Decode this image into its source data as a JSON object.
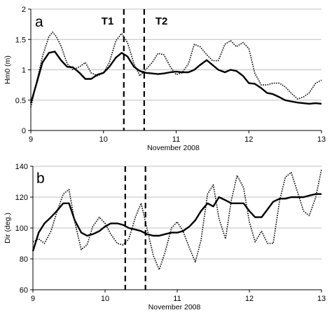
{
  "chart_data": [
    {
      "type": "line",
      "panel_label": "a",
      "title": "",
      "xlabel": "November 2008",
      "ylabel": "Hm0 (m)",
      "xlim": [
        9,
        13
      ],
      "ylim": [
        0,
        2
      ],
      "x_ticks": [
        9,
        10,
        11,
        12,
        13
      ],
      "x_tick_labels": [
        "9",
        "10",
        "11",
        "12",
        "13"
      ],
      "y_ticks": [
        0,
        0.5,
        1,
        1.5,
        2
      ],
      "y_tick_labels": [
        "0",
        "0.5",
        "1",
        "1.5",
        "2"
      ],
      "grid": "horizontal",
      "markers": [
        {
          "label": "T1",
          "x": 10.28
        },
        {
          "label": "T2",
          "x": 10.56
        }
      ],
      "series": [
        {
          "style": "solid",
          "x": [
            9.0,
            9.08,
            9.16,
            9.25,
            9.33,
            9.42,
            9.5,
            9.58,
            9.67,
            9.75,
            9.83,
            9.92,
            10.0,
            10.08,
            10.17,
            10.25,
            10.33,
            10.42,
            10.5,
            10.58,
            10.67,
            10.75,
            10.83,
            10.92,
            11.0,
            11.08,
            11.17,
            11.25,
            11.33,
            11.42,
            11.5,
            11.58,
            11.67,
            11.75,
            11.83,
            11.92,
            12.0,
            12.08,
            12.17,
            12.25,
            12.33,
            12.42,
            12.5,
            12.58,
            12.67,
            12.75,
            12.83,
            12.92,
            13.0
          ],
          "values": [
            0.45,
            0.78,
            1.12,
            1.28,
            1.3,
            1.15,
            1.05,
            1.04,
            0.95,
            0.85,
            0.85,
            0.92,
            0.95,
            1.05,
            1.2,
            1.28,
            1.22,
            1.05,
            0.98,
            0.95,
            0.94,
            0.93,
            0.94,
            0.96,
            0.97,
            0.96,
            0.96,
            1.0,
            1.08,
            1.16,
            1.08,
            1.0,
            0.96,
            1.0,
            0.98,
            0.9,
            0.78,
            0.77,
            0.7,
            0.62,
            0.6,
            0.55,
            0.5,
            0.48,
            0.46,
            0.45,
            0.44,
            0.45,
            0.44
          ]
        },
        {
          "style": "dotted",
          "x": [
            9.0,
            9.08,
            9.16,
            9.25,
            9.3,
            9.35,
            9.42,
            9.5,
            9.58,
            9.67,
            9.75,
            9.83,
            9.92,
            10.0,
            10.08,
            10.17,
            10.25,
            10.33,
            10.42,
            10.5,
            10.58,
            10.67,
            10.75,
            10.83,
            10.92,
            11.0,
            11.08,
            11.17,
            11.25,
            11.33,
            11.42,
            11.5,
            11.58,
            11.67,
            11.75,
            11.83,
            11.92,
            12.0,
            12.08,
            12.17,
            12.25,
            12.33,
            12.42,
            12.5,
            12.58,
            12.67,
            12.75,
            12.83,
            12.92,
            13.0
          ],
          "values": [
            0.38,
            0.8,
            1.22,
            1.55,
            1.62,
            1.55,
            1.38,
            1.1,
            1.0,
            1.05,
            1.12,
            0.95,
            0.9,
            0.95,
            1.12,
            1.48,
            1.6,
            1.45,
            1.1,
            0.9,
            1.0,
            1.12,
            1.27,
            1.25,
            1.05,
            0.92,
            0.95,
            1.1,
            1.42,
            1.38,
            1.25,
            1.15,
            1.15,
            1.42,
            1.48,
            1.38,
            1.45,
            1.35,
            0.95,
            0.75,
            0.75,
            0.78,
            0.78,
            0.72,
            0.62,
            0.52,
            0.55,
            0.62,
            0.78,
            0.83
          ]
        }
      ]
    },
    {
      "type": "line",
      "panel_label": "b",
      "title": "",
      "xlabel": "November 2008",
      "ylabel": "Dir (deg.)",
      "xlim": [
        9,
        13
      ],
      "ylim": [
        60,
        140
      ],
      "x_ticks": [
        9,
        10,
        11,
        12,
        13
      ],
      "x_tick_labels": [
        "9",
        "10",
        "11",
        "12",
        "13"
      ],
      "y_ticks": [
        60,
        80,
        100,
        120,
        140
      ],
      "y_tick_labels": [
        "60",
        "80",
        "100",
        "120",
        "140"
      ],
      "grid": "horizontal",
      "markers": [
        {
          "label": "",
          "x": 10.28
        },
        {
          "label": "",
          "x": 10.56
        }
      ],
      "series": [
        {
          "style": "solid",
          "x": [
            9.0,
            9.08,
            9.16,
            9.25,
            9.33,
            9.42,
            9.5,
            9.58,
            9.67,
            9.75,
            9.83,
            9.92,
            10.0,
            10.08,
            10.17,
            10.25,
            10.33,
            10.42,
            10.5,
            10.58,
            10.67,
            10.75,
            10.83,
            10.92,
            11.0,
            11.08,
            11.17,
            11.25,
            11.33,
            11.42,
            11.5,
            11.58,
            11.67,
            11.75,
            11.83,
            11.92,
            12.0,
            12.08,
            12.17,
            12.25,
            12.33,
            12.42,
            12.5,
            12.58,
            12.67,
            12.75,
            12.83,
            12.92,
            13.0
          ],
          "values": [
            85,
            97,
            103,
            107,
            111,
            116,
            116,
            105,
            97,
            95,
            96,
            98,
            101,
            103,
            103,
            102,
            100,
            99,
            98,
            96,
            95,
            95,
            96,
            97,
            97,
            98,
            101,
            105,
            111,
            116,
            114,
            120,
            118,
            116,
            116,
            116,
            111,
            107,
            107,
            112,
            117,
            119,
            119,
            120,
            120,
            120,
            121,
            122,
            122
          ]
        },
        {
          "style": "dotted",
          "x": [
            9.0,
            9.08,
            9.16,
            9.25,
            9.33,
            9.42,
            9.5,
            9.58,
            9.67,
            9.75,
            9.83,
            9.92,
            10.0,
            10.08,
            10.17,
            10.25,
            10.33,
            10.42,
            10.5,
            10.58,
            10.67,
            10.75,
            10.83,
            10.92,
            11.0,
            11.08,
            11.17,
            11.25,
            11.33,
            11.42,
            11.5,
            11.58,
            11.67,
            11.75,
            11.83,
            11.92,
            12.0,
            12.08,
            12.17,
            12.25,
            12.33,
            12.42,
            12.5,
            12.58,
            12.67,
            12.75,
            12.83,
            12.92,
            13.0
          ],
          "values": [
            91,
            93,
            90,
            98,
            110,
            122,
            125,
            104,
            86,
            89,
            101,
            107,
            103,
            96,
            90,
            89,
            93,
            107,
            116,
            100,
            82,
            73,
            84,
            100,
            104,
            98,
            87,
            78,
            92,
            122,
            128,
            106,
            93,
            118,
            134,
            126,
            104,
            91,
            98,
            90,
            90,
            118,
            133,
            136,
            123,
            111,
            108,
            120,
            138
          ]
        }
      ]
    }
  ]
}
